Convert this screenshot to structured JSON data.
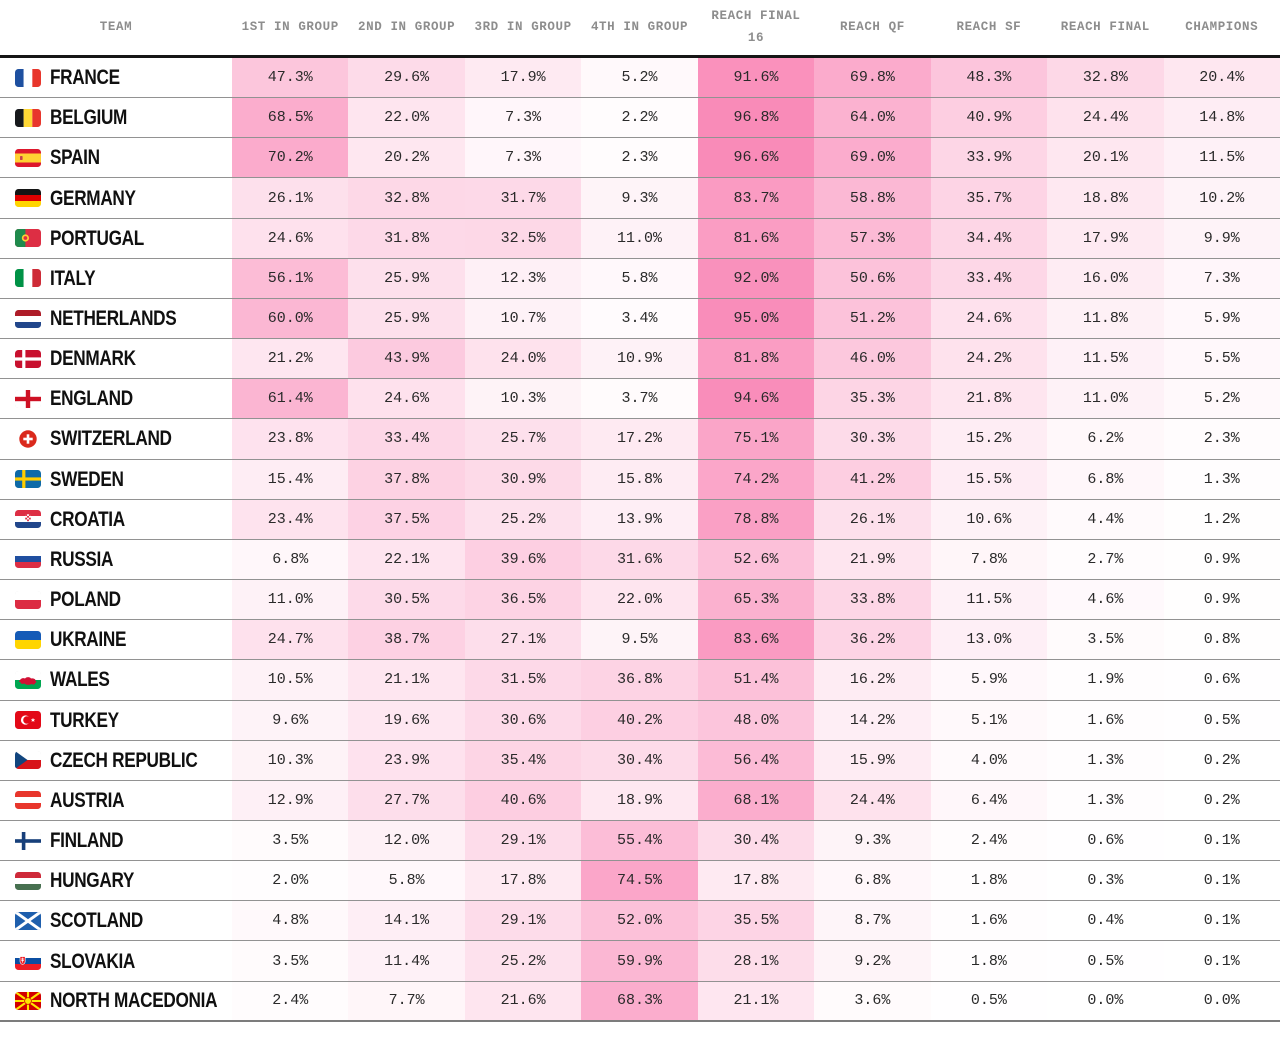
{
  "chart_data": {
    "type": "table",
    "description": "Tournament forecast heat table: probability of each team finishing in each group position and reaching each knockout stage",
    "columns": [
      "TEAM",
      "1ST IN GROUP",
      "2ND IN GROUP",
      "3RD IN GROUP",
      "4TH IN GROUP",
      "REACH FINAL 16",
      "REACH QF",
      "REACH SF",
      "REACH FINAL",
      "CHAMPIONS"
    ],
    "value_format": "percent_one_decimal",
    "heat_scale": {
      "min_color": "#ffffff",
      "max_color": "#f987b6",
      "domain": [
        0,
        100
      ]
    },
    "rows": [
      {
        "team": "FRANCE",
        "flag": "france",
        "values": [
          47.3,
          29.6,
          17.9,
          5.2,
          91.6,
          69.8,
          48.3,
          32.8,
          20.4
        ]
      },
      {
        "team": "BELGIUM",
        "flag": "belgium",
        "values": [
          68.5,
          22.0,
          7.3,
          2.2,
          96.8,
          64.0,
          40.9,
          24.4,
          14.8
        ]
      },
      {
        "team": "SPAIN",
        "flag": "spain",
        "values": [
          70.2,
          20.2,
          7.3,
          2.3,
          96.6,
          69.0,
          33.9,
          20.1,
          11.5
        ]
      },
      {
        "team": "GERMANY",
        "flag": "germany",
        "values": [
          26.1,
          32.8,
          31.7,
          9.3,
          83.7,
          58.8,
          35.7,
          18.8,
          10.2
        ]
      },
      {
        "team": "PORTUGAL",
        "flag": "portugal",
        "values": [
          24.6,
          31.8,
          32.5,
          11.0,
          81.6,
          57.3,
          34.4,
          17.9,
          9.9
        ]
      },
      {
        "team": "ITALY",
        "flag": "italy",
        "values": [
          56.1,
          25.9,
          12.3,
          5.8,
          92.0,
          50.6,
          33.4,
          16.0,
          7.3
        ]
      },
      {
        "team": "NETHERLANDS",
        "flag": "netherlands",
        "values": [
          60.0,
          25.9,
          10.7,
          3.4,
          95.0,
          51.2,
          24.6,
          11.8,
          5.9
        ]
      },
      {
        "team": "DENMARK",
        "flag": "denmark",
        "values": [
          21.2,
          43.9,
          24.0,
          10.9,
          81.8,
          46.0,
          24.2,
          11.5,
          5.5
        ]
      },
      {
        "team": "ENGLAND",
        "flag": "england",
        "values": [
          61.4,
          24.6,
          10.3,
          3.7,
          94.6,
          35.3,
          21.8,
          11.0,
          5.2
        ]
      },
      {
        "team": "SWITZERLAND",
        "flag": "switzerland",
        "values": [
          23.8,
          33.4,
          25.7,
          17.2,
          75.1,
          30.3,
          15.2,
          6.2,
          2.3
        ]
      },
      {
        "team": "SWEDEN",
        "flag": "sweden",
        "values": [
          15.4,
          37.8,
          30.9,
          15.8,
          74.2,
          41.2,
          15.5,
          6.8,
          1.3
        ]
      },
      {
        "team": "CROATIA",
        "flag": "croatia",
        "values": [
          23.4,
          37.5,
          25.2,
          13.9,
          78.8,
          26.1,
          10.6,
          4.4,
          1.2
        ]
      },
      {
        "team": "RUSSIA",
        "flag": "russia",
        "values": [
          6.8,
          22.1,
          39.6,
          31.6,
          52.6,
          21.9,
          7.8,
          2.7,
          0.9
        ]
      },
      {
        "team": "POLAND",
        "flag": "poland",
        "values": [
          11.0,
          30.5,
          36.5,
          22.0,
          65.3,
          33.8,
          11.5,
          4.6,
          0.9
        ]
      },
      {
        "team": "UKRAINE",
        "flag": "ukraine",
        "values": [
          24.7,
          38.7,
          27.1,
          9.5,
          83.6,
          36.2,
          13.0,
          3.5,
          0.8
        ]
      },
      {
        "team": "WALES",
        "flag": "wales",
        "values": [
          10.5,
          21.1,
          31.5,
          36.8,
          51.4,
          16.2,
          5.9,
          1.9,
          0.6
        ]
      },
      {
        "team": "TURKEY",
        "flag": "turkey",
        "values": [
          9.6,
          19.6,
          30.6,
          40.2,
          48.0,
          14.2,
          5.1,
          1.6,
          0.5
        ]
      },
      {
        "team": "CZECH REPUBLIC",
        "flag": "czech-republic",
        "values": [
          10.3,
          23.9,
          35.4,
          30.4,
          56.4,
          15.9,
          4.0,
          1.3,
          0.2
        ]
      },
      {
        "team": "AUSTRIA",
        "flag": "austria",
        "values": [
          12.9,
          27.7,
          40.6,
          18.9,
          68.1,
          24.4,
          6.4,
          1.3,
          0.2
        ]
      },
      {
        "team": "FINLAND",
        "flag": "finland",
        "values": [
          3.5,
          12.0,
          29.1,
          55.4,
          30.4,
          9.3,
          2.4,
          0.6,
          0.1
        ]
      },
      {
        "team": "HUNGARY",
        "flag": "hungary",
        "values": [
          2.0,
          5.8,
          17.8,
          74.5,
          17.8,
          6.8,
          1.8,
          0.3,
          0.1
        ]
      },
      {
        "team": "SCOTLAND",
        "flag": "scotland",
        "values": [
          4.8,
          14.1,
          29.1,
          52.0,
          35.5,
          8.7,
          1.6,
          0.4,
          0.1
        ]
      },
      {
        "team": "SLOVAKIA",
        "flag": "slovakia",
        "values": [
          3.5,
          11.4,
          25.2,
          59.9,
          28.1,
          9.2,
          1.8,
          0.5,
          0.1
        ]
      },
      {
        "team": "NORTH MACEDONIA",
        "flag": "north-macedonia",
        "values": [
          2.4,
          7.7,
          21.6,
          68.3,
          21.1,
          3.6,
          0.5,
          0.0,
          0.0
        ]
      }
    ]
  }
}
